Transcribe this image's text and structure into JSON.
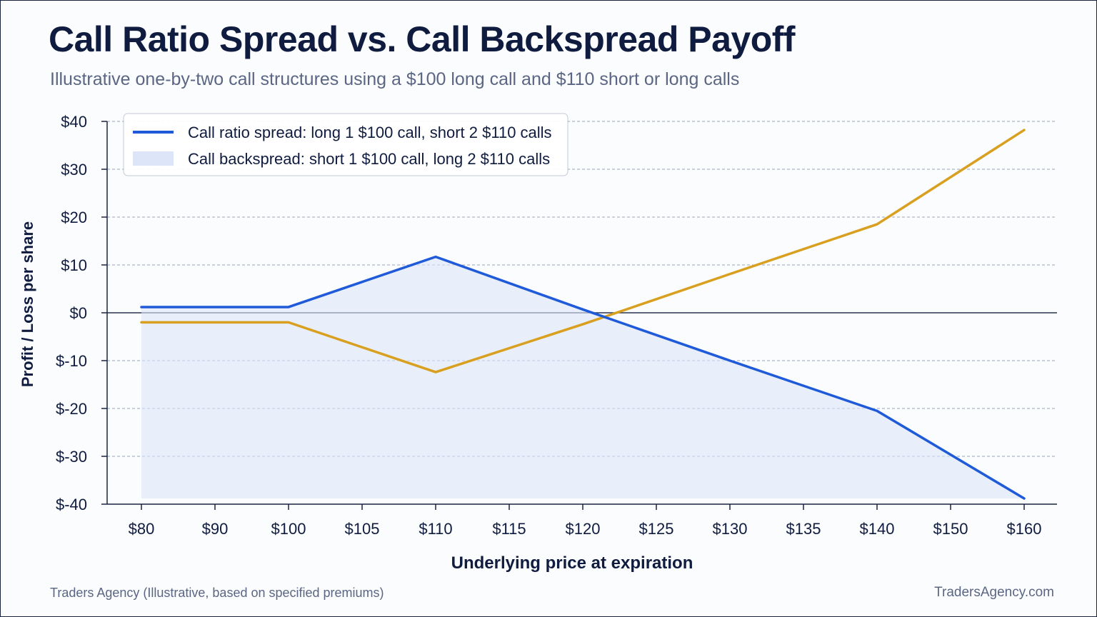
{
  "title": "Call Ratio Spread vs. Call Backspread Payoff",
  "subtitle": "Illustrative one-by-two call structures using a $100 long call and $110 short or long calls",
  "footer": {
    "source": "Traders Agency (Illustrative, based on specified premiums)",
    "site": "TradersAgency.com"
  },
  "chart_data": {
    "type": "line",
    "xlabel": "Underlying price at expiration",
    "ylabel": "Profit / Loss per share",
    "categories": [
      "$80",
      "$90",
      "$100",
      "$105",
      "$110",
      "$115",
      "$120",
      "$125",
      "$130",
      "$135",
      "$140",
      "$150",
      "$160"
    ],
    "y_ticks": [
      "$40",
      "$30",
      "$20",
      "$10",
      "$0",
      "$-10",
      "$-20",
      "$-30",
      "$-40"
    ],
    "ylim": [
      -40,
      40
    ],
    "grid": true,
    "legend_position": "top-left",
    "series": [
      {
        "name": "Call ratio spread: long 1 $100 call, short 2 $110 calls",
        "color": "#1f5ad8",
        "style": "line",
        "points": [
          [
            0,
            1.2
          ],
          [
            2,
            1.2
          ],
          [
            4,
            11.7
          ],
          [
            6,
            0.7
          ],
          [
            8,
            -10
          ],
          [
            10,
            -20.5
          ],
          [
            12,
            -38.8
          ]
        ]
      },
      {
        "name": "Call backspread: short 1 $100 call, long 2 $110 calls",
        "color": "#dce6f8",
        "style": "area",
        "points": []
      },
      {
        "name": "",
        "color": "#d9a020",
        "style": "line",
        "points": [
          [
            0,
            -2
          ],
          [
            2,
            -2
          ],
          [
            4,
            -12.4
          ],
          [
            6,
            -2.4
          ],
          [
            8,
            8.1
          ],
          [
            10,
            18.5
          ],
          [
            12,
            38.2
          ]
        ]
      }
    ]
  }
}
